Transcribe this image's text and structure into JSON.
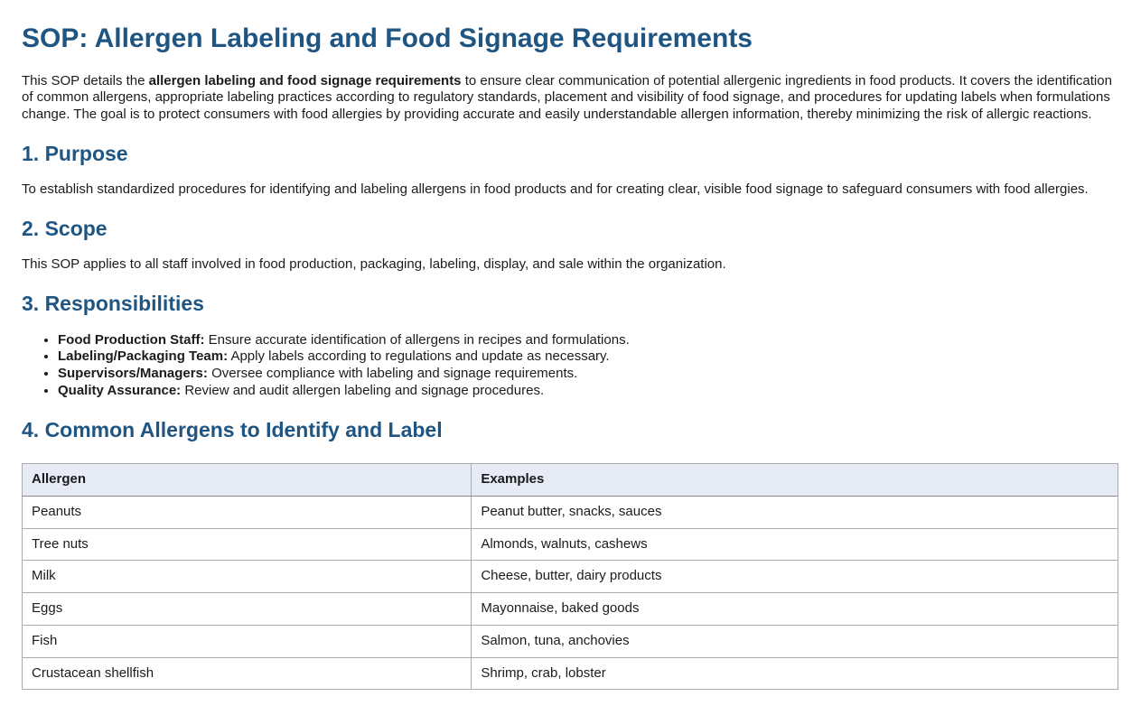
{
  "colors": {
    "heading_blue": "#1f5582",
    "table_header_bg": "#e6ebf5",
    "table_border": "#ababab",
    "body_text": "#1b1b1b"
  },
  "document": {
    "title": "SOP: Allergen Labeling and Food Signage Requirements",
    "intro": {
      "pre": "This SOP details the ",
      "bold": "allergen labeling and food signage requirements",
      "post": " to ensure clear communication of potential allergenic ingredients in food products. It covers the identification of common allergens, appropriate labeling practices according to regulatory standards, placement and visibility of food signage, and procedures for updating labels when formulations change. The goal is to protect consumers with food allergies by providing accurate and easily understandable allergen information, thereby minimizing the risk of allergic reactions."
    },
    "sections": {
      "purpose": {
        "heading": "1. Purpose",
        "body": "To establish standardized procedures for identifying and labeling allergens in food products and for creating clear, visible food signage to safeguard consumers with food allergies."
      },
      "scope": {
        "heading": "2. Scope",
        "body": "This SOP applies to all staff involved in food production, packaging, labeling, display, and sale within the organization."
      },
      "responsibilities": {
        "heading": "3. Responsibilities",
        "items": [
          {
            "label": "Food Production Staff:",
            "text": " Ensure accurate identification of allergens in recipes and formulations."
          },
          {
            "label": "Labeling/Packaging Team:",
            "text": " Apply labels according to regulations and update as necessary."
          },
          {
            "label": "Supervisors/Managers:",
            "text": " Oversee compliance with labeling and signage requirements."
          },
          {
            "label": "Quality Assurance:",
            "text": " Review and audit allergen labeling and signage procedures."
          }
        ]
      },
      "allergens": {
        "heading": "4. Common Allergens to Identify and Label",
        "table": {
          "headers": [
            "Allergen",
            "Examples"
          ],
          "rows": [
            [
              "Peanuts",
              "Peanut butter, snacks, sauces"
            ],
            [
              "Tree nuts",
              "Almonds, walnuts, cashews"
            ],
            [
              "Milk",
              "Cheese, butter, dairy products"
            ],
            [
              "Eggs",
              "Mayonnaise, baked goods"
            ],
            [
              "Fish",
              "Salmon, tuna, anchovies"
            ],
            [
              "Crustacean shellfish",
              "Shrimp, crab, lobster"
            ]
          ]
        }
      }
    }
  }
}
